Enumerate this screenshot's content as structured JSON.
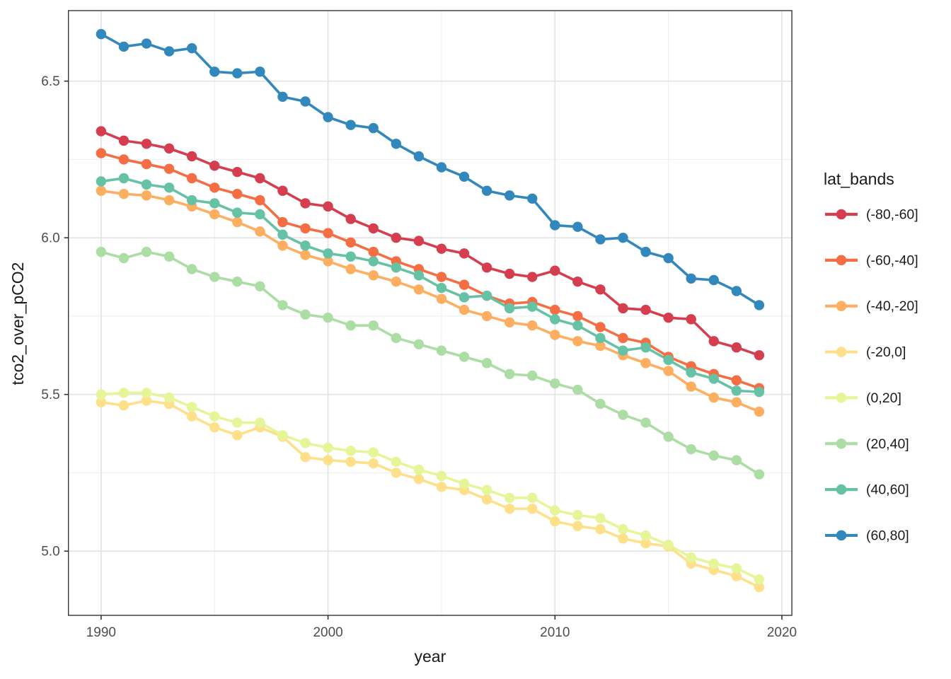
{
  "chart_data": {
    "type": "line",
    "title": "",
    "xlabel": "year",
    "ylabel": "tco2_over_pCO2",
    "legend_title": "lat_bands",
    "legend_position": "right",
    "grid": true,
    "xlim": [
      1988.56,
      2020.44
    ],
    "ylim": [
      4.795,
      6.725
    ],
    "x_ticks": [
      1990,
      2000,
      2010,
      2020
    ],
    "x_tick_labels": [
      "1990",
      "2000",
      "2010",
      "2020"
    ],
    "x_minor_ticks": [
      1995,
      2005,
      2015
    ],
    "y_ticks": [
      5.0,
      5.5,
      6.0,
      6.5
    ],
    "y_tick_labels": [
      "5.0",
      "5.5",
      "6.0",
      "6.5"
    ],
    "y_minor_ticks": [
      5.25,
      5.75,
      6.25
    ],
    "x": [
      1990,
      1991,
      1992,
      1993,
      1994,
      1995,
      1996,
      1997,
      1998,
      1999,
      2000,
      2001,
      2002,
      2003,
      2004,
      2005,
      2006,
      2007,
      2008,
      2009,
      2010,
      2011,
      2012,
      2013,
      2014,
      2015,
      2016,
      2017,
      2018,
      2019
    ],
    "series": [
      {
        "name": "(-80,-60]",
        "color": "#d53e4f",
        "values": [
          6.34,
          6.31,
          6.3,
          6.285,
          6.26,
          6.23,
          6.21,
          6.19,
          6.15,
          6.11,
          6.1,
          6.06,
          6.03,
          6.0,
          5.99,
          5.965,
          5.95,
          5.905,
          5.885,
          5.875,
          5.895,
          5.86,
          5.835,
          5.775,
          5.77,
          5.745,
          5.74,
          5.67,
          5.65,
          5.625
        ]
      },
      {
        "name": "(-60,-40]",
        "color": "#f46d43",
        "values": [
          6.27,
          6.25,
          6.235,
          6.22,
          6.19,
          6.16,
          6.14,
          6.12,
          6.05,
          6.03,
          6.015,
          5.985,
          5.955,
          5.925,
          5.9,
          5.875,
          5.85,
          5.815,
          5.79,
          5.795,
          5.77,
          5.75,
          5.715,
          5.68,
          5.665,
          5.62,
          5.59,
          5.565,
          5.545,
          5.52
        ]
      },
      {
        "name": "(-40,-20]",
        "color": "#fdae61",
        "values": [
          6.15,
          6.14,
          6.135,
          6.12,
          6.1,
          6.075,
          6.05,
          6.02,
          5.975,
          5.945,
          5.925,
          5.9,
          5.88,
          5.86,
          5.835,
          5.805,
          5.77,
          5.75,
          5.73,
          5.72,
          5.69,
          5.67,
          5.655,
          5.625,
          5.6,
          5.575,
          5.525,
          5.49,
          5.475,
          5.445
        ]
      },
      {
        "name": "(-20,0]",
        "color": "#fee08b",
        "values": [
          5.475,
          5.465,
          5.48,
          5.47,
          5.43,
          5.395,
          5.37,
          5.395,
          5.365,
          5.3,
          5.29,
          5.285,
          5.28,
          5.25,
          5.23,
          5.205,
          5.195,
          5.165,
          5.135,
          5.135,
          5.095,
          5.08,
          5.07,
          5.04,
          5.025,
          5.015,
          4.96,
          4.94,
          4.92,
          4.885
        ]
      },
      {
        "name": "(0,20]",
        "color": "#e6f598",
        "values": [
          5.5,
          5.505,
          5.505,
          5.49,
          5.46,
          5.43,
          5.41,
          5.41,
          5.37,
          5.345,
          5.33,
          5.32,
          5.315,
          5.285,
          5.26,
          5.24,
          5.215,
          5.195,
          5.17,
          5.17,
          5.13,
          5.115,
          5.105,
          5.07,
          5.05,
          5.02,
          4.98,
          4.96,
          4.945,
          4.91
        ]
      },
      {
        "name": "(20,40]",
        "color": "#abdda4",
        "values": [
          5.955,
          5.935,
          5.955,
          5.94,
          5.9,
          5.875,
          5.86,
          5.845,
          5.785,
          5.755,
          5.745,
          5.72,
          5.72,
          5.68,
          5.66,
          5.64,
          5.62,
          5.6,
          5.565,
          5.56,
          5.535,
          5.515,
          5.47,
          5.435,
          5.41,
          5.365,
          5.325,
          5.305,
          5.29,
          5.245
        ]
      },
      {
        "name": "(40,60]",
        "color": "#66c2a5",
        "values": [
          6.18,
          6.19,
          6.17,
          6.16,
          6.12,
          6.11,
          6.08,
          6.075,
          6.01,
          5.975,
          5.95,
          5.94,
          5.925,
          5.905,
          5.88,
          5.84,
          5.81,
          5.815,
          5.775,
          5.78,
          5.74,
          5.72,
          5.68,
          5.64,
          5.65,
          5.61,
          5.57,
          5.55,
          5.512,
          5.508
        ]
      },
      {
        "name": "(60,80]",
        "color": "#3288bd",
        "values": [
          6.65,
          6.61,
          6.62,
          6.595,
          6.605,
          6.53,
          6.525,
          6.53,
          6.45,
          6.435,
          6.385,
          6.36,
          6.35,
          6.3,
          6.26,
          6.225,
          6.195,
          6.15,
          6.135,
          6.125,
          6.04,
          6.035,
          5.995,
          6.0,
          5.955,
          5.935,
          5.87,
          5.865,
          5.83,
          5.785
        ]
      }
    ]
  },
  "colors": {
    "background": "#ffffff",
    "panel_background": "#ffffff",
    "panel_border": "#333333",
    "grid_major": "#e3e3e3",
    "grid_minor": "#eeeeee",
    "tick_mark": "#333333",
    "tick_label": "#4d4d4d",
    "axis_title": "#1a1a1a",
    "legend_text": "#1a1a1a"
  }
}
